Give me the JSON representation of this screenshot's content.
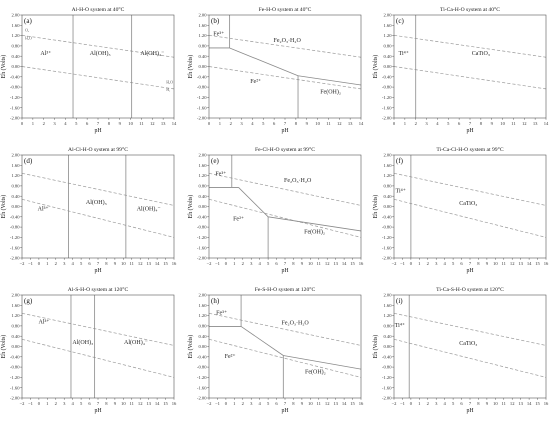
{
  "chart_data": [
    {
      "type": "line",
      "letter": "(a)",
      "title": "Al-H-O system at 40°C",
      "xlabel": "pH",
      "ylabel": "Eh (Volts)",
      "xlim": [
        0,
        14
      ],
      "ylim": [
        -2.0,
        2.0
      ],
      "xticks": [
        "0",
        "1",
        "2",
        "3",
        "4",
        "5",
        "6",
        "7",
        "8",
        "9",
        "10",
        "11",
        "12",
        "13",
        "14"
      ],
      "yticks": [
        "2.00",
        "1.60",
        "1.20",
        "0.80",
        "0.40",
        "0.00",
        "-0.40",
        "-0.80",
        "-1.20",
        "-1.60",
        "-2.00"
      ],
      "water_lines": [
        {
          "name": "O2/H2O",
          "x": [
            0,
            14
          ],
          "y": [
            1.21,
            0.36
          ]
        },
        {
          "name": "H2O/H2",
          "x": [
            0,
            14
          ],
          "y": [
            0.0,
            -0.87
          ]
        }
      ],
      "boundaries": [
        {
          "x": [
            4.7,
            4.7
          ],
          "y": [
            2.0,
            -2.0
          ]
        },
        {
          "x": [
            10.1,
            10.1
          ],
          "y": [
            2.0,
            -2.0
          ]
        }
      ],
      "regions": [
        {
          "label": "Al³⁺",
          "x": 2.2,
          "y": 0.45
        },
        {
          "label": "Al(OH)₃",
          "x": 7.2,
          "y": 0.45
        },
        {
          "label": "Al(OH)₄⁻",
          "x": 12.0,
          "y": 0.45
        }
      ],
      "small_labels": [
        {
          "label": "O₂",
          "x": 0.3,
          "y": 1.35
        },
        {
          "label": "H₂O",
          "x": 0.3,
          "y": 1.05
        },
        {
          "label": "H₂O",
          "x": 13.3,
          "y": -0.66
        },
        {
          "label": "H₂",
          "x": 13.3,
          "y": -0.95
        }
      ]
    },
    {
      "type": "line",
      "letter": "(b)",
      "title": "Fe-H-O system at 40°C",
      "xlabel": "pH",
      "ylabel": "Eh (Volts)",
      "xlim": [
        0,
        14
      ],
      "ylim": [
        -2.0,
        2.0
      ],
      "xticks": [
        "0",
        "1",
        "2",
        "3",
        "4",
        "5",
        "6",
        "7",
        "8",
        "9",
        "10",
        "11",
        "12",
        "13",
        "14"
      ],
      "yticks": [
        "2.00",
        "1.60",
        "1.20",
        "0.80",
        "0.40",
        "0.00",
        "-0.40",
        "-0.80",
        "-1.20",
        "-1.60",
        "-2.00"
      ],
      "water_lines": [
        {
          "name": "O2/H2O",
          "x": [
            0,
            14
          ],
          "y": [
            1.21,
            0.36
          ]
        },
        {
          "name": "H2O/H2",
          "x": [
            0,
            14
          ],
          "y": [
            0.0,
            -0.87
          ]
        }
      ],
      "boundaries": [
        {
          "x": [
            1.9,
            1.9
          ],
          "y": [
            2.0,
            0.72
          ]
        },
        {
          "x": [
            0,
            1.9
          ],
          "y": [
            0.72,
            0.72
          ]
        },
        {
          "x": [
            1.9,
            8.2
          ],
          "y": [
            0.72,
            -0.36
          ]
        },
        {
          "x": [
            8.2,
            14
          ],
          "y": [
            -0.36,
            -0.72
          ]
        },
        {
          "x": [
            8.2,
            8.2
          ],
          "y": [
            -0.36,
            -2.0
          ]
        }
      ],
      "regions": [
        {
          "label": "Fe³⁺",
          "x": 0.9,
          "y": 1.2
        },
        {
          "label": "Fe₂O₃·H₂O",
          "x": 7.2,
          "y": 0.95
        },
        {
          "label": "Fe²⁺",
          "x": 4.3,
          "y": -0.65
        },
        {
          "label": "Fe(OH)₂",
          "x": 11.2,
          "y": -1.05
        }
      ],
      "small_labels": []
    },
    {
      "type": "line",
      "letter": "(c)",
      "title": "Ti-Ca-H-O system at 40°C",
      "xlabel": "pH",
      "ylabel": "Eh (Volts)",
      "xlim": [
        0,
        14
      ],
      "ylim": [
        -2.0,
        2.0
      ],
      "xticks": [
        "0",
        "1",
        "2",
        "3",
        "4",
        "5",
        "6",
        "7",
        "8",
        "9",
        "10",
        "11",
        "12",
        "13",
        "14"
      ],
      "yticks": [
        "2.00",
        "1.60",
        "1.20",
        "0.80",
        "0.40",
        "0.00",
        "-0.40",
        "-0.80",
        "-1.20",
        "-1.60",
        "-2.00"
      ],
      "water_lines": [
        {
          "name": "O2/H2O",
          "x": [
            0,
            14
          ],
          "y": [
            1.21,
            0.36
          ]
        },
        {
          "name": "H2O/H2",
          "x": [
            0,
            14
          ],
          "y": [
            0.0,
            -0.87
          ]
        }
      ],
      "boundaries": [
        {
          "x": [
            2.0,
            2.0
          ],
          "y": [
            2.0,
            -2.0
          ]
        }
      ],
      "regions": [
        {
          "label": "Ti⁴⁺",
          "x": 0.9,
          "y": 0.45
        },
        {
          "label": "CaTiO₃",
          "x": 8.0,
          "y": 0.45
        }
      ],
      "small_labels": []
    },
    {
      "type": "line",
      "letter": "(d)",
      "title": "Al-Cl-H-O system at 99°C",
      "xlabel": "pH",
      "ylabel": "Eh (Volts)",
      "xlim": [
        -2,
        16
      ],
      "ylim": [
        -2.0,
        2.0
      ],
      "xticks": [
        "−2",
        "−1",
        "0",
        "1",
        "2",
        "3",
        "4",
        "5",
        "6",
        "7",
        "8",
        "9",
        "10",
        "11",
        "12",
        "13",
        "14",
        "15",
        "16"
      ],
      "yticks": [
        "2.00",
        "1.60",
        "1.20",
        "0.80",
        "0.40",
        "0.00",
        "-0.40",
        "-0.80",
        "-1.20",
        "-1.60",
        "-2.00"
      ],
      "water_lines": [
        {
          "name": "O2/H2O",
          "x": [
            -2,
            16
          ],
          "y": [
            1.29,
            0.04
          ]
        },
        {
          "name": "H2O/H2",
          "x": [
            -2,
            16
          ],
          "y": [
            0.28,
            -1.2
          ]
        }
      ],
      "boundaries": [
        {
          "x": [
            3.5,
            3.5
          ],
          "y": [
            2.0,
            -2.0
          ]
        },
        {
          "x": [
            10.3,
            10.3
          ],
          "y": [
            2.0,
            -2.0
          ]
        }
      ],
      "regions": [
        {
          "label": "Al³⁺",
          "x": 0.5,
          "y": -0.15
        },
        {
          "label": "Al(OH)₃",
          "x": 6.8,
          "y": 0.1
        },
        {
          "label": "Al(OH)₄⁻",
          "x": 13.0,
          "y": -0.15
        }
      ],
      "small_labels": []
    },
    {
      "type": "line",
      "letter": "(e)",
      "title": "Fe-Cl-H-O system at 99°C",
      "xlabel": "pH",
      "ylabel": "Eh (Volts)",
      "xlim": [
        -2,
        16
      ],
      "ylim": [
        -2.0,
        2.0
      ],
      "xticks": [
        "−2",
        "−1",
        "0",
        "1",
        "2",
        "3",
        "4",
        "5",
        "6",
        "7",
        "8",
        "9",
        "10",
        "11",
        "12",
        "13",
        "14",
        "15",
        "16"
      ],
      "yticks": [
        "2.00",
        "1.60",
        "1.20",
        "0.80",
        "0.40",
        "0.00",
        "-0.40",
        "-0.80",
        "-1.20",
        "-1.60",
        "-2.00"
      ],
      "water_lines": [
        {
          "name": "O2/H2O",
          "x": [
            -2,
            16
          ],
          "y": [
            1.29,
            0.04
          ]
        },
        {
          "name": "H2O/H2",
          "x": [
            -2,
            16
          ],
          "y": [
            0.28,
            -1.2
          ]
        }
      ],
      "boundaries": [
        {
          "x": [
            0.7,
            0.7
          ],
          "y": [
            2.0,
            0.74
          ]
        },
        {
          "x": [
            -2,
            1.5
          ],
          "y": [
            0.74,
            0.74
          ]
        },
        {
          "x": [
            1.5,
            5.0
          ],
          "y": [
            0.74,
            -0.4
          ]
        },
        {
          "x": [
            5.0,
            16
          ],
          "y": [
            -0.4,
            -0.95
          ]
        },
        {
          "x": [
            5.0,
            5.0
          ],
          "y": [
            -0.4,
            -2.0
          ]
        }
      ],
      "regions": [
        {
          "label": "Fe³⁺",
          "x": -0.6,
          "y": 1.2
        },
        {
          "label": "Fe₂O₃·H₂O",
          "x": 8.5,
          "y": 0.95
        },
        {
          "label": "Fe²⁺",
          "x": 1.5,
          "y": -0.55
        },
        {
          "label": "Fe(OH)₂",
          "x": 10.5,
          "y": -1.05
        }
      ],
      "small_labels": []
    },
    {
      "type": "line",
      "letter": "(f)",
      "title": "Ti-Ca-Cl-H-O system at 99°C",
      "xlabel": "pH",
      "ylabel": "Eh (Volts)",
      "xlim": [
        -2,
        16
      ],
      "ylim": [
        -2.0,
        2.0
      ],
      "xticks": [
        "−2",
        "−1",
        "0",
        "1",
        "2",
        "3",
        "4",
        "5",
        "6",
        "7",
        "8",
        "9",
        "10",
        "11",
        "12",
        "13",
        "14",
        "15",
        "16"
      ],
      "yticks": [
        "2.00",
        "1.60",
        "1.20",
        "0.80",
        "0.40",
        "0.00",
        "-0.40",
        "-0.80",
        "-1.20",
        "-1.60",
        "-2.00"
      ],
      "water_lines": [
        {
          "name": "O2/H2O",
          "x": [
            -2,
            16
          ],
          "y": [
            1.29,
            0.04
          ]
        },
        {
          "name": "H2O/H2",
          "x": [
            -2,
            16
          ],
          "y": [
            0.28,
            -1.2
          ]
        }
      ],
      "boundaries": [
        {
          "x": [
            0.0,
            0.0
          ],
          "y": [
            2.0,
            -2.0
          ]
        }
      ],
      "regions": [
        {
          "label": "Ti⁴⁺",
          "x": -1.2,
          "y": 0.55
        },
        {
          "label": "CaTiO₃",
          "x": 6.8,
          "y": 0.05
        }
      ],
      "small_labels": []
    },
    {
      "type": "line",
      "letter": "(g)",
      "title": "Al-S-H-O system at 120°C",
      "xlabel": "pH",
      "ylabel": "Eh (Volts)",
      "xlim": [
        -2,
        16
      ],
      "ylim": [
        -2.0,
        2.0
      ],
      "xticks": [
        "−2",
        "−1",
        "0",
        "1",
        "2",
        "3",
        "4",
        "5",
        "6",
        "7",
        "8",
        "9",
        "10",
        "11",
        "12",
        "13",
        "14",
        "15",
        "16"
      ],
      "yticks": [
        "2.00",
        "1.60",
        "1.20",
        "0.80",
        "0.40",
        "0.00",
        "-0.40",
        "-0.80",
        "-1.20",
        "-1.60",
        "-2.00"
      ],
      "water_lines": [
        {
          "name": "O2/H2O",
          "x": [
            -2,
            16
          ],
          "y": [
            1.29,
            0.04
          ]
        },
        {
          "name": "H2O/H2",
          "x": [
            -2,
            16
          ],
          "y": [
            0.28,
            -1.2
          ]
        }
      ],
      "boundaries": [
        {
          "x": [
            3.8,
            3.8
          ],
          "y": [
            2.0,
            -2.0
          ]
        },
        {
          "x": [
            6.6,
            6.6
          ],
          "y": [
            2.0,
            -2.0
          ]
        }
      ],
      "regions": [
        {
          "label": "Al³⁺",
          "x": 0.6,
          "y": 0.9
        },
        {
          "label": "Al(OH)₃",
          "x": 5.2,
          "y": 0.1
        },
        {
          "label": "Al(OH)₄⁻",
          "x": 11.5,
          "y": 0.1
        }
      ],
      "small_labels": []
    },
    {
      "type": "line",
      "letter": "(h)",
      "title": "Fe-S-H-O system at 120°C",
      "xlabel": "pH",
      "ylabel": "Eh (Volts)",
      "xlim": [
        -2,
        16
      ],
      "ylim": [
        -2.0,
        2.0
      ],
      "xticks": [
        "−2",
        "−1",
        "0",
        "1",
        "2",
        "3",
        "4",
        "5",
        "6",
        "7",
        "8",
        "9",
        "10",
        "11",
        "12",
        "13",
        "14",
        "15",
        "16"
      ],
      "yticks": [
        "2.00",
        "1.60",
        "1.20",
        "0.80",
        "0.40",
        "0.00",
        "-0.40",
        "-0.80",
        "-1.20",
        "-1.60",
        "-2.00"
      ],
      "water_lines": [
        {
          "name": "O2/H2O",
          "x": [
            -2,
            16
          ],
          "y": [
            1.29,
            0.04
          ]
        },
        {
          "name": "H2O/H2",
          "x": [
            -2,
            16
          ],
          "y": [
            0.28,
            -1.2
          ]
        }
      ],
      "boundaries": [
        {
          "x": [
            1.8,
            1.8
          ],
          "y": [
            2.0,
            0.78
          ]
        },
        {
          "x": [
            -2,
            1.8
          ],
          "y": [
            0.78,
            0.78
          ]
        },
        {
          "x": [
            1.8,
            6.8
          ],
          "y": [
            0.78,
            -0.35
          ]
        },
        {
          "x": [
            6.8,
            16
          ],
          "y": [
            -0.35,
            -0.88
          ]
        },
        {
          "x": [
            6.8,
            6.8
          ],
          "y": [
            -0.35,
            -2.0
          ]
        }
      ],
      "regions": [
        {
          "label": "Fe³⁺",
          "x": -0.5,
          "y": 1.25
        },
        {
          "label": "Fe₂O₃·H₂O",
          "x": 8.2,
          "y": 0.85
        },
        {
          "label": "Fe²⁺",
          "x": 0.5,
          "y": -0.45
        },
        {
          "label": "Fe(OH)₂",
          "x": 10.6,
          "y": -1.05
        }
      ],
      "small_labels": []
    },
    {
      "type": "line",
      "letter": "(i)",
      "title": "Ti-Ca-S-H-O system at 120°C",
      "xlabel": "pH",
      "ylabel": "Eh (Volts)",
      "xlim": [
        -2,
        16
      ],
      "ylim": [
        -2.0,
        2.0
      ],
      "xticks": [
        "−2",
        "−1",
        "0",
        "1",
        "2",
        "3",
        "4",
        "5",
        "6",
        "7",
        "8",
        "9",
        "10",
        "11",
        "12",
        "13",
        "14",
        "15",
        "16"
      ],
      "yticks": [
        "2.00",
        "1.60",
        "1.20",
        "0.80",
        "0.40",
        "0.00",
        "-0.40",
        "-0.80",
        "-1.20",
        "-1.60",
        "-2.00"
      ],
      "water_lines": [
        {
          "name": "O2/H2O",
          "x": [
            -2,
            16
          ],
          "y": [
            1.29,
            0.04
          ]
        },
        {
          "name": "H2O/H2",
          "x": [
            -2,
            16
          ],
          "y": [
            0.28,
            -1.2
          ]
        }
      ],
      "boundaries": [
        {
          "x": [
            -0.2,
            -0.2
          ],
          "y": [
            2.0,
            -2.0
          ]
        }
      ],
      "regions": [
        {
          "label": "Ti⁴⁺",
          "x": -1.3,
          "y": 0.75
        },
        {
          "label": "CaTiO₃",
          "x": 6.8,
          "y": 0.05
        }
      ],
      "small_labels": []
    }
  ]
}
